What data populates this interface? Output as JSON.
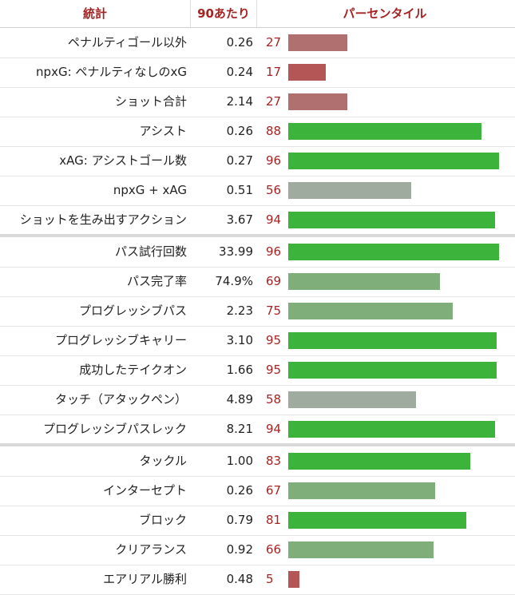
{
  "header": {
    "stat": "統計",
    "per90": "90あたり",
    "percentile": "パーセンタイル"
  },
  "colors": {
    "low": "#b07070",
    "very_low": "#b45656",
    "neutral": "#a0ab9f",
    "good": "#7fae7a",
    "excellent": "#3cb43c",
    "header_text": "#a42424"
  },
  "chart_data": {
    "type": "bar",
    "groups": [
      [
        {
          "label": "ペナルティゴール以外",
          "per90": "0.26",
          "percentile": 27
        },
        {
          "label": "npxG: ペナルティなしのxG",
          "per90": "0.24",
          "percentile": 17
        },
        {
          "label": "ショット合計",
          "per90": "2.14",
          "percentile": 27
        },
        {
          "label": "アシスト",
          "per90": "0.26",
          "percentile": 88
        },
        {
          "label": "xAG: アシストゴール数",
          "per90": "0.27",
          "percentile": 96
        },
        {
          "label": "npxG + xAG",
          "per90": "0.51",
          "percentile": 56
        },
        {
          "label": "ショットを生み出すアクション",
          "per90": "3.67",
          "percentile": 94
        }
      ],
      [
        {
          "label": "パス試行回数",
          "per90": "33.99",
          "percentile": 96
        },
        {
          "label": "パス完了率",
          "per90": "74.9%",
          "percentile": 69
        },
        {
          "label": "プログレッシブパス",
          "per90": "2.23",
          "percentile": 75
        },
        {
          "label": "プログレッシブキャリー",
          "per90": "3.10",
          "percentile": 95
        },
        {
          "label": "成功したテイクオン",
          "per90": "1.66",
          "percentile": 95
        },
        {
          "label": "タッチ（アタックペン）",
          "per90": "4.89",
          "percentile": 58
        },
        {
          "label": "プログレッシブパスレック",
          "per90": "8.21",
          "percentile": 94
        }
      ],
      [
        {
          "label": "タックル",
          "per90": "1.00",
          "percentile": 83
        },
        {
          "label": "インターセプト",
          "per90": "0.26",
          "percentile": 67
        },
        {
          "label": "ブロック",
          "per90": "0.79",
          "percentile": 81
        },
        {
          "label": "クリアランス",
          "per90": "0.92",
          "percentile": 66
        },
        {
          "label": "エアリアル勝利",
          "per90": "0.48",
          "percentile": 5
        }
      ]
    ],
    "xlim": [
      0,
      100
    ]
  }
}
